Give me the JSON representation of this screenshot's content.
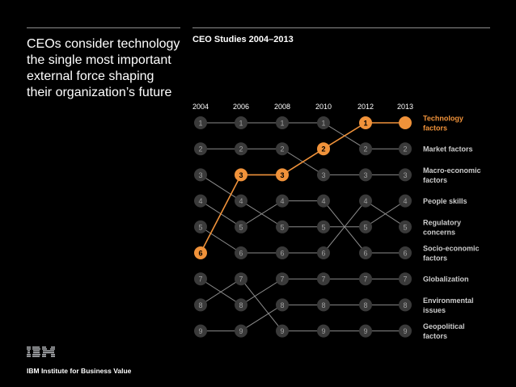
{
  "headline": "CEOs consider technology the single most important external force shaping their organization’s future",
  "logo_text": "IBM",
  "footer": "IBM Institute for Business Value",
  "colors": {
    "background": "#000000",
    "highlight": "#f0923a",
    "line": "#8c8c8c",
    "node": "#3a3a3a",
    "node_text": "#a0a0a0",
    "label": "#cccccc"
  },
  "chart_data": {
    "type": "bump",
    "title": "CEO Studies 2004–2013",
    "years": [
      "2004",
      "2006",
      "2008",
      "2010",
      "2012",
      "2013"
    ],
    "rank_range": [
      1,
      9
    ],
    "rank_labels": [
      "1",
      "2",
      "3",
      "4",
      "5",
      "6",
      "7",
      "8",
      "9"
    ],
    "highlight_series": "Technology factors",
    "series": [
      {
        "name": "Technology factors",
        "ranks": [
          6,
          3,
          3,
          2,
          1,
          1
        ]
      },
      {
        "name": "Market factors",
        "ranks": [
          1,
          1,
          1,
          1,
          2,
          2
        ]
      },
      {
        "name": "Macro-economic factors",
        "ranks": [
          2,
          2,
          2,
          3,
          3,
          3
        ]
      },
      {
        "name": "People skills",
        "ranks": [
          3,
          4,
          5,
          5,
          5,
          4
        ]
      },
      {
        "name": "Regulatory concerns",
        "ranks": [
          5,
          6,
          6,
          6,
          4,
          5
        ]
      },
      {
        "name": "Socio-economic factors",
        "ranks": [
          4,
          5,
          4,
          4,
          6,
          6
        ]
      },
      {
        "name": "Globalization",
        "ranks": [
          7,
          8,
          7,
          7,
          7,
          7
        ]
      },
      {
        "name": "Environmental issues",
        "ranks": [
          9,
          9,
          8,
          8,
          8,
          8
        ]
      },
      {
        "name": "Geopolitical factors",
        "ranks": [
          8,
          7,
          9,
          9,
          9,
          9
        ]
      }
    ],
    "final_labels": [
      [
        "Technology",
        "factors"
      ],
      [
        "Market factors"
      ],
      [
        "Macro-economic",
        "factors"
      ],
      [
        "People skills"
      ],
      [
        "Regulatory",
        "concerns"
      ],
      [
        "Socio-economic",
        "factors"
      ],
      [
        "Globalization"
      ],
      [
        "Environmental",
        "issues"
      ],
      [
        "Geopolitical",
        "factors"
      ]
    ]
  }
}
